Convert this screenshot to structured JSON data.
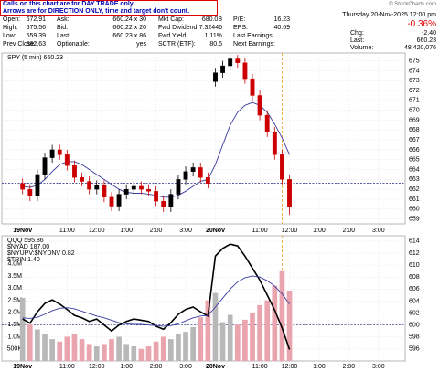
{
  "header": {
    "notice": [
      "Calls on this chart are for DAY TRADE only.",
      "Arrows are for DIRECTION ONLY, time and target don't count."
    ],
    "watermark": "© StockCharts.com",
    "date": "Thursday  20-Nov-2025  12:00 pm",
    "change_pct": "-0.36%",
    "columns": [
      [
        {
          "label": "Open:",
          "value": "672.91"
        },
        {
          "label": "High:",
          "value": "675.56"
        },
        {
          "label": "Low:",
          "value": "659.39"
        },
        {
          "label": "Prev Close:",
          "value": "662.63"
        }
      ],
      [
        {
          "label": "Ask:",
          "value": "660.24 x 30"
        },
        {
          "label": "Bid:",
          "value": "660.22 x 20"
        },
        {
          "label": "Last:",
          "value": "660.23 x 86"
        },
        {
          "label": "Optionable:",
          "value": "yes"
        }
      ],
      [
        {
          "label": "Mkt Cap:",
          "value": "680.0B"
        },
        {
          "label": "Fwd Dividend:",
          "value": "7.32446"
        },
        {
          "label": "Fwd Yield:",
          "value": "1.11%"
        },
        {
          "label": "SCTR (ETF):",
          "value": "80.5"
        }
      ],
      [
        {
          "label": "P/E:",
          "value": "16.23"
        },
        {
          "label": "EPS:",
          "value": "40.69"
        },
        {
          "label": "Last Earnings:"
        },
        {
          "label": "Next Earnings:"
        }
      ],
      [
        {
          "label": "Chg:",
          "value": "-2.40"
        },
        {
          "label": "Last:",
          "value": "660.23"
        },
        {
          "label": "Volume:",
          "value": "48,420,076"
        }
      ]
    ]
  },
  "chart_data": [
    {
      "type": "candlestick",
      "legend": "SPY (5 min) 660.23",
      "x": [
        0,
        0.25,
        0.5,
        0.75,
        1,
        1.25,
        1.5,
        1.75,
        2,
        2.25,
        2.5,
        2.75,
        3,
        3.25,
        3.5,
        3.75,
        4,
        4.25,
        4.5,
        4.75,
        5,
        5.25,
        5.5,
        5.75,
        6,
        6.25,
        6.5,
        6.75,
        7,
        7.25,
        7.5,
        7.75,
        8,
        8.25,
        8.5,
        8.75,
        9
      ],
      "open": [
        662.6,
        662.0,
        661.3,
        663.5,
        665.2,
        666.0,
        665.5,
        664.4,
        663.2,
        662.8,
        662.0,
        662.4,
        661.2,
        660.3,
        661.5,
        662.0,
        662.3,
        662.0,
        661.8,
        660.8,
        660.2,
        661.5,
        663.0,
        663.8,
        664.2,
        663.2,
        672.9,
        673.8,
        674.5,
        675.2,
        674.8,
        673.2,
        671.5,
        669.5,
        667.8,
        665.5,
        663.0
      ],
      "high": [
        663.1,
        662.5,
        664.0,
        665.7,
        666.5,
        666.5,
        666.0,
        664.9,
        663.7,
        663.3,
        662.9,
        662.9,
        661.7,
        662.0,
        662.5,
        662.8,
        662.8,
        662.5,
        662.3,
        661.3,
        662.0,
        663.5,
        664.3,
        664.7,
        664.7,
        663.7,
        674.3,
        675.0,
        675.7,
        675.6,
        675.3,
        673.7,
        672.0,
        670.0,
        668.3,
        666.0,
        663.5
      ],
      "low": [
        661.5,
        660.8,
        660.8,
        663.0,
        664.7,
        665.0,
        663.9,
        662.7,
        662.3,
        661.5,
        661.5,
        660.7,
        659.8,
        659.8,
        661.0,
        661.5,
        661.5,
        661.3,
        660.3,
        659.7,
        659.7,
        661.0,
        662.5,
        663.3,
        662.7,
        662.1,
        672.4,
        673.3,
        674.0,
        674.3,
        672.7,
        671.0,
        669.0,
        667.3,
        665.0,
        662.5,
        659.4
      ],
      "close": [
        662.0,
        661.3,
        663.5,
        665.2,
        666.0,
        665.5,
        664.4,
        663.2,
        662.8,
        662.0,
        662.4,
        661.2,
        660.3,
        661.5,
        662.0,
        662.3,
        662.0,
        661.8,
        660.8,
        660.2,
        661.5,
        663.0,
        663.8,
        664.2,
        663.2,
        662.6,
        673.8,
        674.5,
        675.2,
        674.8,
        673.2,
        671.5,
        669.5,
        667.8,
        665.5,
        663.0,
        660.2
      ],
      "up_color": "#000000",
      "down_color": "#cc0000",
      "series": [
        {
          "color": "#3a3aa0",
          "values": [
            662.3,
            662.2,
            662.4,
            663.0,
            663.8,
            664.5,
            664.8,
            664.8,
            664.5,
            664.0,
            663.5,
            663.0,
            662.5,
            662.0,
            661.7,
            661.6,
            661.6,
            661.5,
            661.4,
            661.2,
            661.2,
            661.4,
            661.8,
            662.3,
            662.8,
            663.0,
            664.5,
            666.5,
            668.5,
            669.8,
            670.5,
            670.8,
            670.5,
            669.8,
            668.6,
            667.2,
            665.5
          ]
        }
      ],
      "reference_line": {
        "value": 662.63,
        "color": "#1a237e"
      },
      "marker_x": {
        "value": 8.75,
        "color": "#f0a020"
      },
      "xlim": [
        -0.7,
        12.9
      ],
      "xticks": [
        {
          "value": 0,
          "label": "19Nov"
        },
        {
          "value": 1.5,
          "label": "11:00"
        },
        {
          "value": 2.5,
          "label": "12:00"
        },
        {
          "value": 3.5,
          "label": "1:00"
        },
        {
          "value": 4.5,
          "label": "2:00"
        },
        {
          "value": 5.5,
          "label": "3:00"
        },
        {
          "value": 6.5,
          "label": "20Nov"
        },
        {
          "value": 8,
          "label": "11:00"
        },
        {
          "value": 9,
          "label": "12:00"
        },
        {
          "value": 10,
          "label": "1:00"
        },
        {
          "value": 11,
          "label": "2:00"
        },
        {
          "value": 12,
          "label": "3:00"
        }
      ],
      "ylim": [
        658.5,
        675.8
      ],
      "yticks": [
        659,
        660,
        661,
        662,
        663,
        664,
        665,
        666,
        667,
        668,
        669,
        670,
        671,
        672,
        673,
        674,
        675
      ],
      "grid": true
    },
    {
      "type": "line_volume",
      "legend": [
        "QQQ 595.86",
        "$NYAD 187.00",
        "$NYUPV:$NYDNV 0.82",
        "$TRIN 1.40"
      ],
      "x": [
        0,
        0.25,
        0.5,
        0.75,
        1,
        1.25,
        1.5,
        1.75,
        2,
        2.25,
        2.5,
        2.75,
        3,
        3.25,
        3.5,
        3.75,
        4,
        4.25,
        4.5,
        4.75,
        5,
        5.25,
        5.5,
        5.75,
        6,
        6.25,
        6.5,
        6.75,
        7,
        7.25,
        7.5,
        7.75,
        8,
        8.25,
        8.5,
        8.75,
        9
      ],
      "series": [
        {
          "name": "QQQ",
          "color": "#000000",
          "values": [
            601.0,
            600.3,
            602.2,
            603.6,
            604.2,
            603.5,
            602.6,
            601.6,
            601.2,
            600.6,
            601.0,
            600.0,
            599.0,
            600.0,
            600.6,
            601.0,
            600.8,
            600.6,
            599.8,
            599.3,
            600.4,
            601.8,
            602.6,
            603.0,
            602.2,
            601.5,
            611.5,
            612.8,
            613.5,
            613.2,
            611.5,
            609.5,
            607.5,
            605.0,
            602.5,
            599.5,
            595.9
          ]
        },
        {
          "color": "#3a3aa0",
          "values": [
            601.2,
            601.1,
            601.3,
            601.8,
            602.4,
            602.8,
            602.9,
            602.7,
            602.3,
            601.9,
            601.5,
            601.2,
            600.8,
            600.4,
            600.2,
            600.1,
            600.1,
            600.0,
            599.9,
            599.8,
            599.9,
            600.2,
            600.7,
            601.2,
            601.5,
            601.6,
            603.0,
            604.5,
            606.0,
            607.2,
            607.9,
            608.2,
            608.0,
            607.4,
            606.5,
            605.2,
            603.5
          ]
        },
        {
          "type": "volume",
          "axis": "y2",
          "up_color": "#b8b8b8",
          "down_color": "#eaa4ae",
          "values": [
            2600000,
            1500000,
            1300000,
            1100000,
            900000,
            800000,
            1000000,
            1100000,
            900000,
            700000,
            600000,
            700000,
            900000,
            1000000,
            700000,
            600000,
            500000,
            600000,
            800000,
            1000000,
            900000,
            1100000,
            1200000,
            1400000,
            1800000,
            2500000,
            2800000,
            1600000,
            1900000,
            1500000,
            1700000,
            2000000,
            2300000,
            2500000,
            3100000,
            3700000,
            2900000
          ]
        }
      ],
      "reference_line": {
        "value": 600,
        "color": "#1a237e"
      },
      "marker_x": {
        "value": 8.75,
        "color": "#f0a020"
      },
      "xlim": [
        -0.7,
        12.9
      ],
      "xticks": [
        {
          "value": 0,
          "label": "19Nov"
        },
        {
          "value": 1.5,
          "label": "11:00"
        },
        {
          "value": 2.5,
          "label": "12:00"
        },
        {
          "value": 3.5,
          "label": "1:00"
        },
        {
          "value": 4.5,
          "label": "2:00"
        },
        {
          "value": 5.5,
          "label": "3:00"
        },
        {
          "value": 6.5,
          "label": "20Nov"
        },
        {
          "value": 8,
          "label": "11:00"
        },
        {
          "value": 9,
          "label": "12:00"
        },
        {
          "value": 10,
          "label": "1:00"
        },
        {
          "value": 11,
          "label": "2:00"
        },
        {
          "value": 12,
          "label": "3:00"
        }
      ],
      "ylim": [
        594,
        614.9
      ],
      "yticks": [
        596,
        598,
        600,
        602,
        604,
        606,
        608,
        610,
        612,
        614
      ],
      "y2lim": [
        0,
        5160000
      ],
      "y2ticks": [
        {
          "value": 500000,
          "label": "500K"
        },
        {
          "value": 1000000,
          "label": "1.0M"
        },
        {
          "value": 1500000,
          "label": "1.5M"
        },
        {
          "value": 2000000,
          "label": "2.0M"
        },
        {
          "value": 2500000,
          "label": "2.5M"
        },
        {
          "value": 3000000,
          "label": "3.0M"
        },
        {
          "value": 3500000,
          "label": "3.5M"
        },
        {
          "value": 4000000,
          "label": "4.0M"
        }
      ],
      "grid": true
    }
  ]
}
